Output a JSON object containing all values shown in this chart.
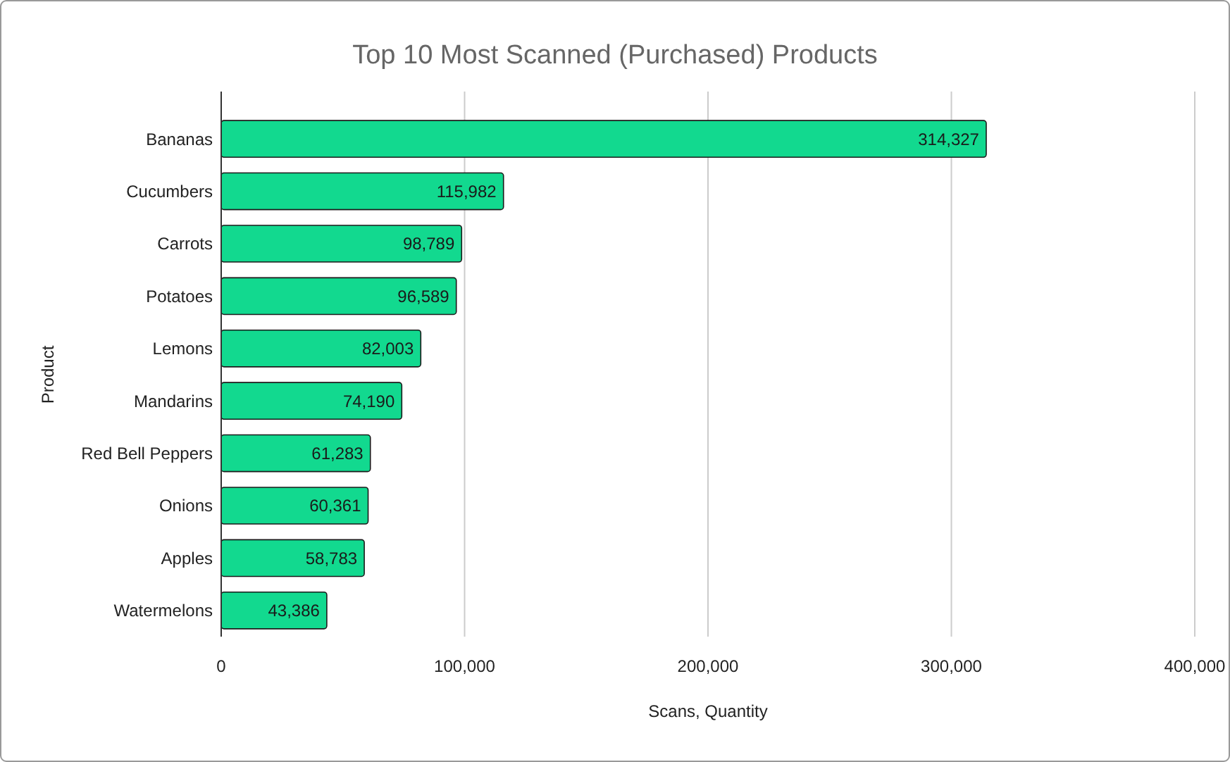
{
  "chart_data": {
    "type": "bar",
    "orientation": "horizontal",
    "title": "Top 10 Most Scanned (Purchased) Products",
    "xlabel": "Scans, Quantity",
    "ylabel": "Product",
    "categories": [
      "Bananas",
      "Cucumbers",
      "Carrots",
      "Potatoes",
      "Lemons",
      "Mandarins",
      "Red Bell Peppers",
      "Onions",
      "Apples",
      "Watermelons"
    ],
    "values": [
      314327,
      115982,
      98789,
      96589,
      82003,
      74190,
      61283,
      60361,
      58783,
      43386
    ],
    "color": "#12d98f",
    "xlim": [
      0,
      400000
    ],
    "xticks": [
      {
        "value": 0,
        "label": "0"
      },
      {
        "value": 100000,
        "label": "100,000"
      },
      {
        "value": 200000,
        "label": "200,000"
      },
      {
        "value": 300000,
        "label": "300,000"
      },
      {
        "value": 400000,
        "label": "400,000"
      }
    ],
    "value_labels": [
      "314,327",
      "115,982",
      "98,789",
      "96,589",
      "82,003",
      "74,190",
      "61,283",
      "60,361",
      "58,783",
      "43,386"
    ],
    "grid": "x"
  }
}
